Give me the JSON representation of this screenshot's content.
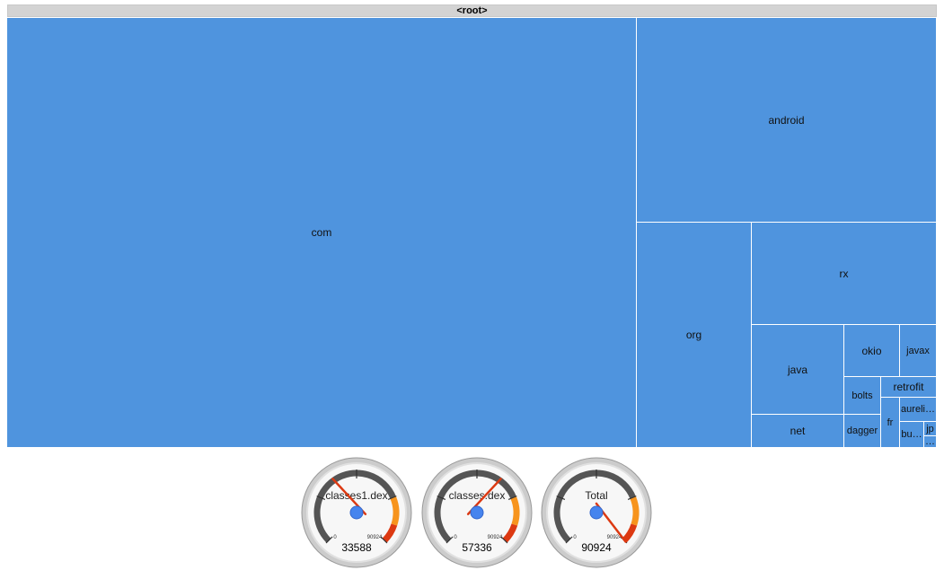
{
  "header": {
    "title": "<root>"
  },
  "chart_data": [
    {
      "type": "treemap",
      "root": "<root>",
      "nodes": [
        {
          "name": "com",
          "color": "#4f94de"
        },
        {
          "name": "android",
          "color": "#4f94de"
        },
        {
          "name": "org",
          "color": "#4f94de"
        },
        {
          "name": "rx",
          "color": "#4f94de"
        },
        {
          "name": "java",
          "color": "#4f94de"
        },
        {
          "name": "okio",
          "color": "#4f94de"
        },
        {
          "name": "javax",
          "color": "#4f94de"
        },
        {
          "name": "net",
          "color": "#4f94de"
        },
        {
          "name": "bolts",
          "color": "#4f94de"
        },
        {
          "name": "retrofit",
          "color": "#4f94de"
        },
        {
          "name": "dagger",
          "color": "#4f94de"
        },
        {
          "name": "fr",
          "color": "#4f94de"
        },
        {
          "name": "aureli…",
          "color": "#4f94de"
        },
        {
          "name": "bu…",
          "color": "#4f94de"
        },
        {
          "name": "jp",
          "color": "#4f94de"
        },
        {
          "name": "…",
          "color": "#4f94de"
        }
      ]
    },
    {
      "type": "gauge",
      "gauges": [
        {
          "label": "classes1.dex",
          "min": 0,
          "max": 90924,
          "value": 33588
        },
        {
          "label": "classes.dex",
          "min": 0,
          "max": 90924,
          "value": 57336
        },
        {
          "label": "Total",
          "min": 0,
          "max": 90924,
          "value": 90924
        }
      ],
      "colors": {
        "yellow_band": "#f7941d",
        "red_band": "#dc3912",
        "needle": "#dc3912",
        "hub": "#4684ee"
      }
    }
  ]
}
